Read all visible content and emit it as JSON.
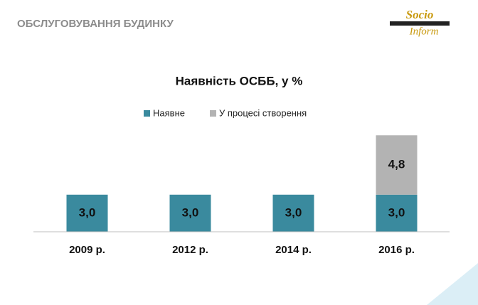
{
  "header": {
    "title": "ОБСЛУГОВУВАННЯ БУДИНКУ",
    "logo_top": "Socio",
    "logo_bottom": "Inform"
  },
  "chart_data": {
    "type": "bar",
    "stacked": true,
    "title": "Наявність ОСББ, у %",
    "categories": [
      "2009 р.",
      "2012 р.",
      "2014 р.",
      "2016 р."
    ],
    "series": [
      {
        "name": "Наявне",
        "color": "#3a8a9e",
        "values": [
          3.0,
          3.0,
          3.0,
          3.0
        ],
        "value_labels": [
          "3,0",
          "3,0",
          "3,0",
          "3,0"
        ]
      },
      {
        "name": "У процесі створення",
        "color": "#b3b3b3",
        "values": [
          null,
          null,
          null,
          4.8
        ],
        "value_labels": [
          null,
          null,
          null,
          "4,8"
        ]
      }
    ],
    "legend": "top"
  }
}
